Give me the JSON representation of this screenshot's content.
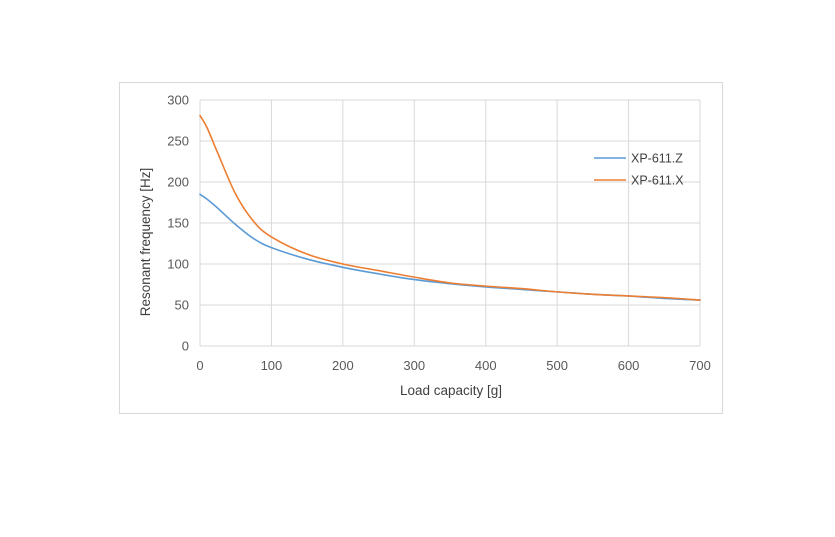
{
  "chart_data": {
    "type": "line",
    "title": "",
    "xlabel": "Load capacity [g]",
    "ylabel": "Resonant  frequency [Hz]",
    "xlim": [
      0,
      700
    ],
    "ylim": [
      0,
      300
    ],
    "xticks": [
      0,
      100,
      200,
      300,
      400,
      500,
      600,
      700
    ],
    "yticks": [
      0,
      50,
      100,
      150,
      200,
      250,
      300
    ],
    "grid": true,
    "legend_position": "right",
    "series": [
      {
        "name": "XP-611.Z",
        "color": "#5b9bd5",
        "x": [
          0,
          10,
          25,
          50,
          75,
          100,
          150,
          200,
          250,
          300,
          350,
          400,
          450,
          500,
          550,
          600,
          650,
          700
        ],
        "y": [
          185,
          179,
          168,
          148,
          131,
          120,
          106,
          96,
          88,
          81,
          76,
          72,
          69,
          66,
          63,
          61,
          58,
          56
        ]
      },
      {
        "name": "XP-611.X",
        "color": "#ed7d31",
        "x": [
          0,
          10,
          25,
          50,
          75,
          100,
          150,
          200,
          250,
          300,
          350,
          400,
          450,
          500,
          550,
          600,
          650,
          700
        ],
        "y": [
          281,
          266,
          235,
          185,
          152,
          133,
          112,
          100,
          92,
          84,
          77,
          73,
          70,
          66,
          63,
          61,
          59,
          56
        ]
      }
    ]
  }
}
